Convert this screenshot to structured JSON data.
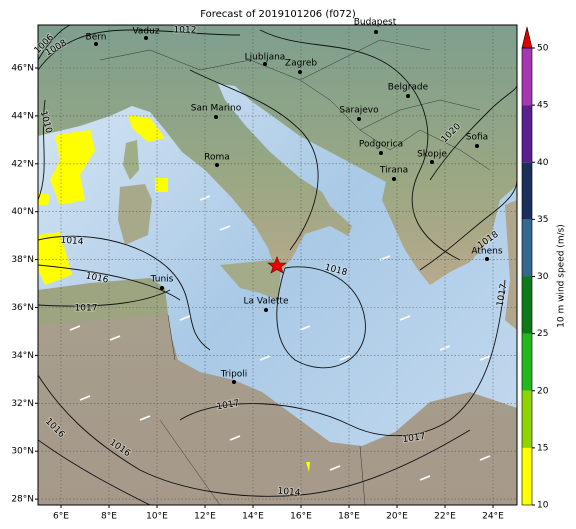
{
  "title": "Forecast of 2019101206 (f072)",
  "lon_ticks": [
    {
      "value": 6,
      "label": "6°E"
    },
    {
      "value": 8,
      "label": "8°E"
    },
    {
      "value": 10,
      "label": "10°E"
    },
    {
      "value": 12,
      "label": "12°E"
    },
    {
      "value": 14,
      "label": "14°E"
    },
    {
      "value": 16,
      "label": "16°E"
    },
    {
      "value": 18,
      "label": "18°E"
    },
    {
      "value": 20,
      "label": "20°E"
    },
    {
      "value": 22,
      "label": "22°E"
    },
    {
      "value": 24,
      "label": "24°E"
    }
  ],
  "lat_ticks": [
    {
      "value": 46,
      "label": "46°N"
    },
    {
      "value": 44,
      "label": "44°N"
    },
    {
      "value": 42,
      "label": "42°N"
    },
    {
      "value": 40,
      "label": "40°N"
    },
    {
      "value": 38,
      "label": "38°N"
    },
    {
      "value": 36,
      "label": "36°N"
    },
    {
      "value": 34,
      "label": "34°N"
    },
    {
      "value": 32,
      "label": "32°N"
    },
    {
      "value": 30,
      "label": "30°N"
    },
    {
      "value": 28,
      "label": "28°N"
    }
  ],
  "cities": [
    "Bern",
    "Vaduz",
    "Budapest",
    "Ljubljana",
    "Zagreb",
    "San Marino",
    "Sarajevo",
    "Belgrade",
    "Roma",
    "Podgorica",
    "Skopje",
    "Sofia",
    "Tirana",
    "Athens",
    "Tunis",
    "La Valette",
    "Tripoli"
  ],
  "isobar_labels": [
    "1006",
    "1008",
    "1010",
    "1012",
    "1014",
    "1016",
    "1017",
    "1018",
    "1017",
    "1017",
    "1016",
    "1016",
    "1014",
    "1018",
    "1017",
    "1020"
  ],
  "colorbar": {
    "label": "10 m wind speed (m/s)",
    "ticks": [
      10,
      15,
      20,
      25,
      30,
      35,
      40,
      45,
      50
    ],
    "colors": [
      "#ffff00",
      "#8fd400",
      "#22b81e",
      "#0c7a18",
      "#33688f",
      "#1b2f5c",
      "#5b1f8f",
      "#a637b0"
    ],
    "extend_color": "#e00000"
  }
}
